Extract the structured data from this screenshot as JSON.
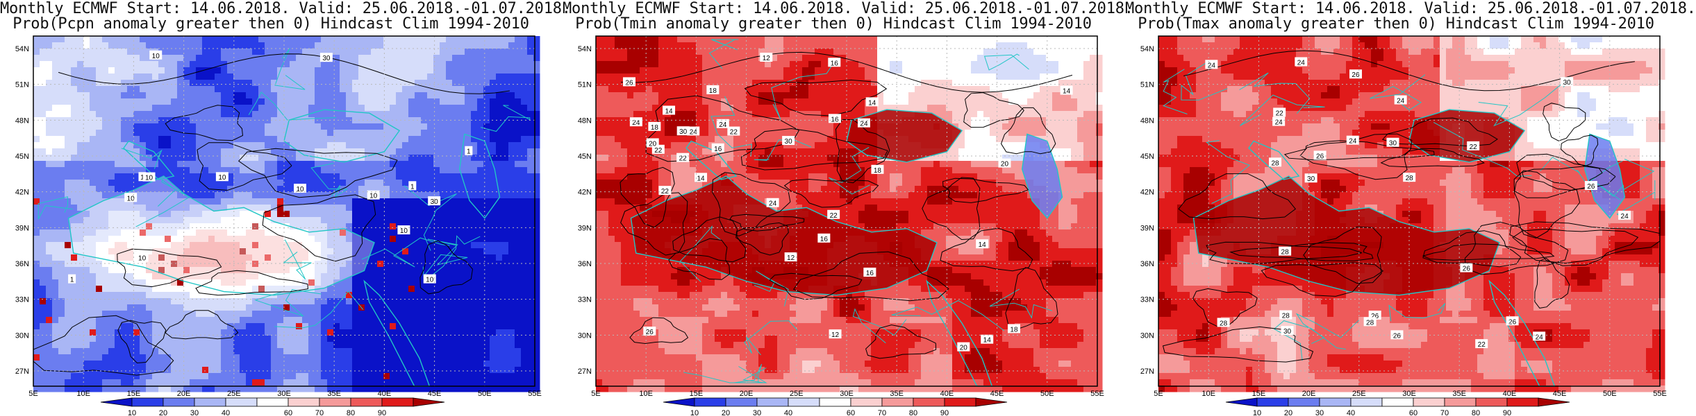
{
  "panels": [
    {
      "id": "pcpn",
      "title_line1": "Monthly ECMWF Start: 14.06.2018. Valid: 25.06.2018.-01.07.2018.",
      "title_line2": "Prob(Pcpn anomaly greater then 0) Hindcast Clim 1994-2010",
      "scheme": "precip",
      "contour_labels": [
        "10",
        "30",
        "10",
        "10",
        "10",
        "10",
        "30",
        "10",
        "1",
        "1",
        "10",
        "10",
        "1",
        "1",
        "10"
      ]
    },
    {
      "id": "tmin",
      "title_line1": "Monthly ECMWF Start: 14.06.2018. Valid: 25.06.2018.-01.07.2018.",
      "title_line2": "Prob(Tmin anomaly greater then 0) Hindcast Clim 1994-2010",
      "scheme": "temp",
      "contour_labels": [
        "14",
        "16",
        "18",
        "14",
        "16",
        "14",
        "12",
        "14",
        "22",
        "18",
        "24",
        "16",
        "12",
        "20",
        "22",
        "24",
        "18",
        "24",
        "22",
        "20",
        "26",
        "30",
        "24",
        "22",
        "18",
        "16",
        "14",
        "12",
        "22",
        "20",
        "24",
        "30",
        "26",
        "16",
        "14"
      ]
    },
    {
      "id": "tmax",
      "title_line1": "Monthly ECMWF Start: 14.06.2018. Valid: 25.06.2018.-01.07.2018.",
      "title_line2": "Prob(Tmax anomaly greater then 0) Hindcast Clim 1994-2010",
      "scheme": "temp",
      "contour_labels": [
        "22",
        "24",
        "26",
        "24",
        "28",
        "30",
        "24",
        "26",
        "28",
        "22",
        "28",
        "26",
        "24",
        "26",
        "28",
        "30",
        "24",
        "26",
        "22",
        "28",
        "30",
        "26",
        "24",
        "28",
        "30",
        "26",
        "24"
      ]
    }
  ],
  "lat_ticks": [
    "54N",
    "51N",
    "48N",
    "45N",
    "42N",
    "39N",
    "36N",
    "33N",
    "30N",
    "27N"
  ],
  "lon_ticks": [
    "5E",
    "10E",
    "15E",
    "20E",
    "25E",
    "30E",
    "35E",
    "40E",
    "45E",
    "50E",
    "55E"
  ],
  "colorbar": {
    "labels": [
      "10",
      "20",
      "30",
      "40",
      "60",
      "70",
      "80",
      "90"
    ],
    "colors": [
      "#0a12c8",
      "#2a3ee8",
      "#6b7df0",
      "#a9b6f5",
      "#d6ddfa",
      "#ffffff",
      "#fbd0d0",
      "#f59a9a",
      "#ee5a5a",
      "#e01a1a",
      "#a80000"
    ]
  },
  "colors": {
    "coast": "#21c6c6",
    "contour": "#000000",
    "grid": "#b9b9b9"
  }
}
